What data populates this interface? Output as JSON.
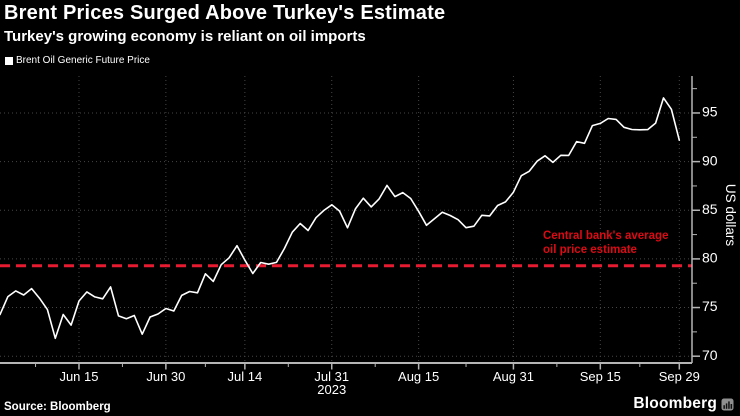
{
  "header": {
    "title": "Brent Prices Surged Above Turkey's Estimate",
    "subtitle": "Turkey's growing economy is reliant on oil imports"
  },
  "legend": {
    "label": "Brent Oil Generic Future Price"
  },
  "footer": {
    "source": "Source: Bloomberg",
    "brand": "Bloomberg"
  },
  "colors": {
    "background": "#000000",
    "text": "#ffffff",
    "line": "#ffffff",
    "grid": "#464646",
    "axis": "#b5b5b5",
    "reference": "#e61a30",
    "annotation": "#dc0a14"
  },
  "chart_data": {
    "type": "line",
    "title": "Brent Oil Generic Future Price",
    "xlabel": "",
    "ylabel": "US dollars",
    "year_label": "2023",
    "ylim": [
      69.3,
      98.8
    ],
    "y_ticks": [
      70,
      75,
      80,
      85,
      90,
      95
    ],
    "x_tick_labels": [
      "Jun 15",
      "Jun 30",
      "Jul 14",
      "Jul 31",
      "Aug 15",
      "Aug 31",
      "Sep 15",
      "Sep 29"
    ],
    "grid": true,
    "legend_position": "top-left",
    "reference_line": {
      "value": 79.3,
      "style": "dashed",
      "label_lines": [
        "Central bank's average",
        "oil price estimate"
      ]
    },
    "series": [
      {
        "name": "Brent Oil Generic Future Price",
        "unit": "US dollars",
        "dates": [
          "Jun 1",
          "Jun 2",
          "Jun 5",
          "Jun 6",
          "Jun 7",
          "Jun 8",
          "Jun 9",
          "Jun 12",
          "Jun 13",
          "Jun 14",
          "Jun 15",
          "Jun 16",
          "Jun 19",
          "Jun 20",
          "Jun 21",
          "Jun 22",
          "Jun 23",
          "Jun 26",
          "Jun 27",
          "Jun 28",
          "Jun 29",
          "Jun 30",
          "Jul 3",
          "Jul 4",
          "Jul 5",
          "Jul 6",
          "Jul 7",
          "Jul 10",
          "Jul 11",
          "Jul 12",
          "Jul 13",
          "Jul 14",
          "Jul 17",
          "Jul 18",
          "Jul 19",
          "Jul 20",
          "Jul 21",
          "Jul 24",
          "Jul 25",
          "Jul 26",
          "Jul 27",
          "Jul 28",
          "Jul 31",
          "Aug 1",
          "Aug 2",
          "Aug 3",
          "Aug 4",
          "Aug 7",
          "Aug 8",
          "Aug 9",
          "Aug 10",
          "Aug 11",
          "Aug 14",
          "Aug 15",
          "Aug 16",
          "Aug 17",
          "Aug 18",
          "Aug 21",
          "Aug 22",
          "Aug 23",
          "Aug 24",
          "Aug 25",
          "Aug 28",
          "Aug 29",
          "Aug 30",
          "Aug 31",
          "Sep 1",
          "Sep 4",
          "Sep 5",
          "Sep 6",
          "Sep 7",
          "Sep 8",
          "Sep 11",
          "Sep 12",
          "Sep 13",
          "Sep 14",
          "Sep 15",
          "Sep 18",
          "Sep 19",
          "Sep 20",
          "Sep 21",
          "Sep 22",
          "Sep 25",
          "Sep 26",
          "Sep 27",
          "Sep 28",
          "Sep 29"
        ],
        "values": [
          74.28,
          76.13,
          76.71,
          76.29,
          76.95,
          75.96,
          74.79,
          71.84,
          74.29,
          73.2,
          75.67,
          76.61,
          76.09,
          75.9,
          77.12,
          74.14,
          73.85,
          74.18,
          72.26,
          74.03,
          74.34,
          74.9,
          74.65,
          76.25,
          76.65,
          76.52,
          78.47,
          77.69,
          79.4,
          80.11,
          81.36,
          79.87,
          78.5,
          79.63,
          79.46,
          79.64,
          81.07,
          82.74,
          83.64,
          82.92,
          84.24,
          84.99,
          85.56,
          84.91,
          83.2,
          85.14,
          86.24,
          85.34,
          86.17,
          87.55,
          86.4,
          86.81,
          86.21,
          84.89,
          83.45,
          84.12,
          84.8,
          84.46,
          84.03,
          83.21,
          83.36,
          84.48,
          84.42,
          85.49,
          85.86,
          86.86,
          88.55,
          89.0,
          90.04,
          90.6,
          89.92,
          90.65,
          90.64,
          92.06,
          91.88,
          93.7,
          93.93,
          94.43,
          94.34,
          93.53,
          93.3,
          93.27,
          93.29,
          93.96,
          96.55,
          95.38,
          92.2
        ]
      }
    ]
  }
}
